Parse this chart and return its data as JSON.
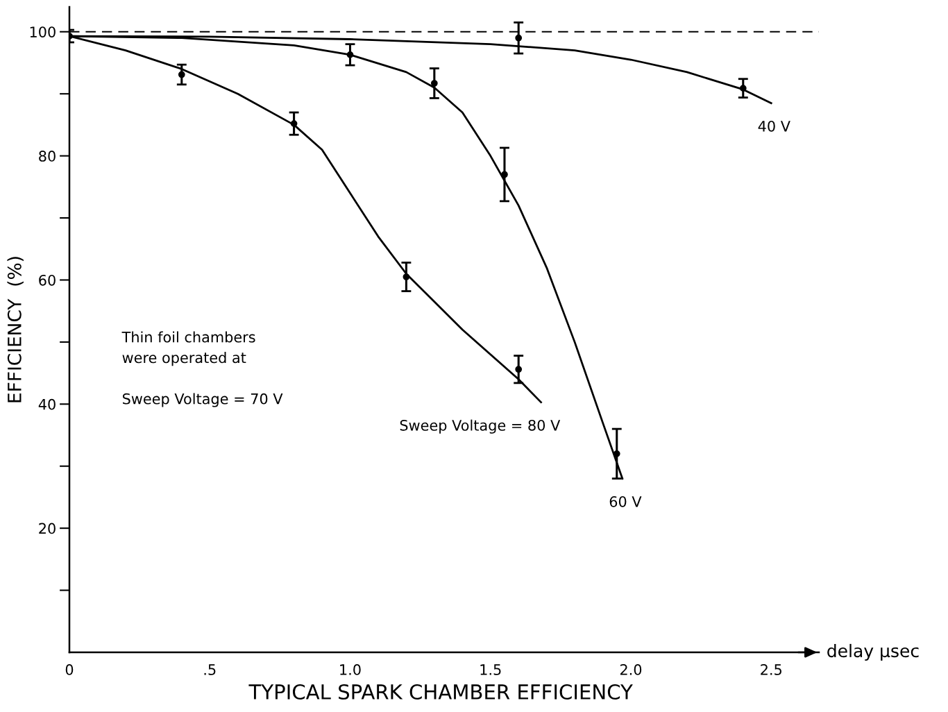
{
  "chart_data": {
    "type": "line",
    "title": "TYPICAL SPARK CHAMBER EFFICIENCY",
    "xlabel": "delay μsec",
    "ylabel": "EFFICIENCY  (%)",
    "xlim": [
      0,
      2.67
    ],
    "ylim": [
      0,
      104
    ],
    "xticks": [
      0,
      {
        "value": 0.5,
        "label": ".5"
      },
      {
        "value": 1.0,
        "label": "1.0"
      },
      {
        "value": 1.5,
        "label": "1.5"
      },
      {
        "value": 2.0,
        "label": "2.0"
      },
      {
        "value": 2.5,
        "label": "2.5"
      }
    ],
    "yticks": [
      {
        "value": 10,
        "label": null
      },
      20,
      {
        "value": 30,
        "label": null
      },
      40,
      {
        "value": 50,
        "label": null
      },
      60,
      {
        "value": 70,
        "label": null
      },
      80,
      {
        "value": 90,
        "label": null
      },
      100
    ],
    "grid": false,
    "legend": false,
    "line_style": "solid",
    "marker": "none",
    "ref_lines": [
      {
        "axis": "y",
        "value": 100,
        "line_style": "dashed",
        "color": "#000000"
      }
    ],
    "annotations": [
      "Thin foil chambers\nwere operated at\n\nSweep Voltage = 70 V"
    ],
    "series": [
      {
        "name": "40 V",
        "color": "#000000",
        "x": [
          0,
          0.5,
          1.0,
          1.5,
          1.8,
          2.0,
          2.2,
          2.4,
          2.5
        ],
        "values": [
          99.3,
          99.2,
          98.8,
          98,
          97,
          95.5,
          93.5,
          90.7,
          88.5
        ]
      },
      {
        "name": "60 V",
        "color": "#000000",
        "x": [
          0,
          0.4,
          0.8,
          1.0,
          1.2,
          1.3,
          1.4,
          1.5,
          1.6,
          1.7,
          1.8,
          1.9,
          1.97
        ],
        "values": [
          99.3,
          99,
          97.8,
          96.3,
          93.5,
          91,
          87,
          80,
          72,
          62,
          50,
          37,
          28
        ]
      },
      {
        "name": "Sweep Voltage = 80 V",
        "color": "#000000",
        "x": [
          0,
          0.2,
          0.4,
          0.6,
          0.8,
          0.9,
          1.0,
          1.1,
          1.2,
          1.4,
          1.6,
          1.68
        ],
        "values": [
          99.3,
          97,
          94,
          90,
          85,
          81,
          74,
          67,
          61,
          52,
          44,
          40.3
        ]
      },
      {
        "type": "scatter",
        "marker": "circle",
        "color": "#000000",
        "x": [
          0,
          0.4,
          0.8,
          1.2,
          1.6
        ],
        "values": [
          99.3,
          93.1,
          85.2,
          60.5,
          45.6
        ],
        "errors": [
          1,
          1.6,
          1.8,
          2.3,
          2.2
        ]
      },
      {
        "type": "scatter",
        "marker": "circle",
        "color": "#000000",
        "x": [
          1.0,
          1.3,
          1.55,
          1.95
        ],
        "values": [
          96.3,
          91.7,
          77,
          32
        ],
        "errors": [
          1.7,
          2.4,
          4.3,
          4
        ]
      },
      {
        "type": "scatter",
        "marker": "circle",
        "color": "#000000",
        "x": [
          1.6,
          2.4
        ],
        "values": [
          99,
          90.9
        ],
        "errors": [
          2.5,
          1.5
        ]
      }
    ]
  }
}
